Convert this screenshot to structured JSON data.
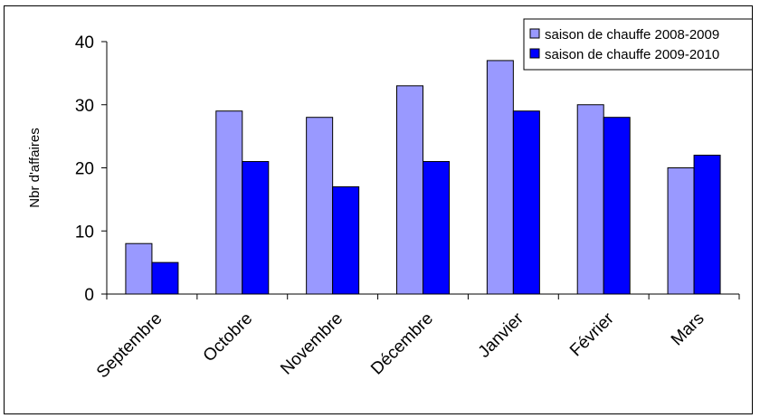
{
  "chart_data": {
    "type": "bar",
    "ylabel": "Nbr d'affaires",
    "xlabel": "",
    "title": "",
    "ylim": [
      0,
      40
    ],
    "yticks": [
      0,
      10,
      20,
      30,
      40
    ],
    "categories": [
      "Septembre",
      "Octobre",
      "Novembre",
      "Décembre",
      "Janvier",
      "Février",
      "Mars"
    ],
    "series": [
      {
        "name": "saison de chauffe 2008-2009",
        "color": "#9999ff",
        "values": [
          8,
          29,
          28,
          33,
          37,
          30,
          20
        ]
      },
      {
        "name": "saison de chauffe 2009-2010",
        "color": "#0000ff",
        "values": [
          5,
          21,
          17,
          21,
          29,
          28,
          22
        ]
      }
    ],
    "legend_position": "top-right",
    "grid": false
  }
}
